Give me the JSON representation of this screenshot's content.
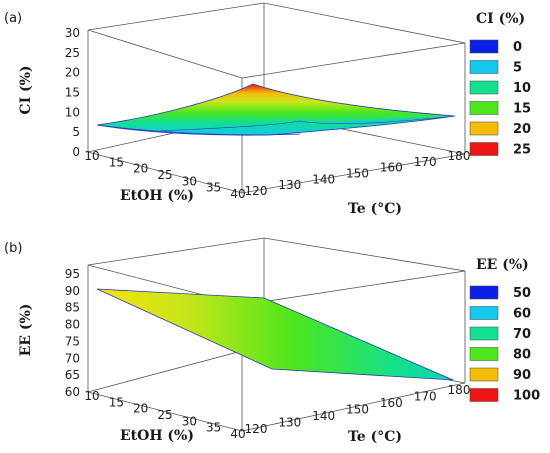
{
  "chart_data": [
    {
      "type": "surface",
      "panel_label": "(a)",
      "xlabel": "EtOH (%)",
      "ylabel": "Te (°C)",
      "zlabel": "CI (%)",
      "x_ticks": [
        "10",
        "15",
        "20",
        "25",
        "30",
        "35",
        "40"
      ],
      "y_ticks": [
        "120",
        "130",
        "140",
        "150",
        "160",
        "170",
        "180"
      ],
      "z_ticks": [
        "0",
        "5",
        "10",
        "15",
        "20",
        "25",
        "30"
      ],
      "xlim": [
        10,
        40
      ],
      "ylim": [
        120,
        180
      ],
      "zlim": [
        0,
        30
      ],
      "corners": [
        {
          "x": 10,
          "y": 120,
          "z": 7
        },
        {
          "x": 40,
          "y": 120,
          "z": 3.5
        },
        {
          "x": 40,
          "y": 180,
          "z": 6.5
        },
        {
          "x": 10,
          "y": 180,
          "z": 19
        }
      ],
      "legend": {
        "title": "CI (%)",
        "entries": [
          {
            "label": "0",
            "color": "#0b1fe6"
          },
          {
            "label": "5",
            "color": "#14c8f0"
          },
          {
            "label": "10",
            "color": "#12e08e"
          },
          {
            "label": "15",
            "color": "#4ee61c"
          },
          {
            "label": "20",
            "color": "#f5bd08"
          },
          {
            "label": "25",
            "color": "#f01414"
          }
        ]
      }
    },
    {
      "type": "surface",
      "panel_label": "(b)",
      "xlabel": "EtOH (%)",
      "ylabel": "Te (°C)",
      "zlabel": "EE (%)",
      "x_ticks": [
        "10",
        "15",
        "20",
        "25",
        "30",
        "35",
        "40"
      ],
      "y_ticks": [
        "120",
        "130",
        "140",
        "150",
        "160",
        "170",
        "180"
      ],
      "z_ticks": [
        "60",
        "65",
        "70",
        "75",
        "80",
        "85",
        "90",
        "95"
      ],
      "xlim": [
        10,
        40
      ],
      "ylim": [
        120,
        180
      ],
      "zlim": [
        60,
        95
      ],
      "corners": [
        {
          "x": 10,
          "y": 120,
          "z": 93
        },
        {
          "x": 40,
          "y": 120,
          "z": 74
        },
        {
          "x": 40,
          "y": 180,
          "z": 66
        },
        {
          "x": 10,
          "y": 180,
          "z": 85
        }
      ],
      "legend": {
        "title": "EE (%)",
        "entries": [
          {
            "label": "50",
            "color": "#0b1fe6"
          },
          {
            "label": "60",
            "color": "#14c8f0"
          },
          {
            "label": "70",
            "color": "#12e08e"
          },
          {
            "label": "80",
            "color": "#4ee61c"
          },
          {
            "label": "90",
            "color": "#f5bd08"
          },
          {
            "label": "100",
            "color": "#f01414"
          }
        ]
      }
    }
  ]
}
